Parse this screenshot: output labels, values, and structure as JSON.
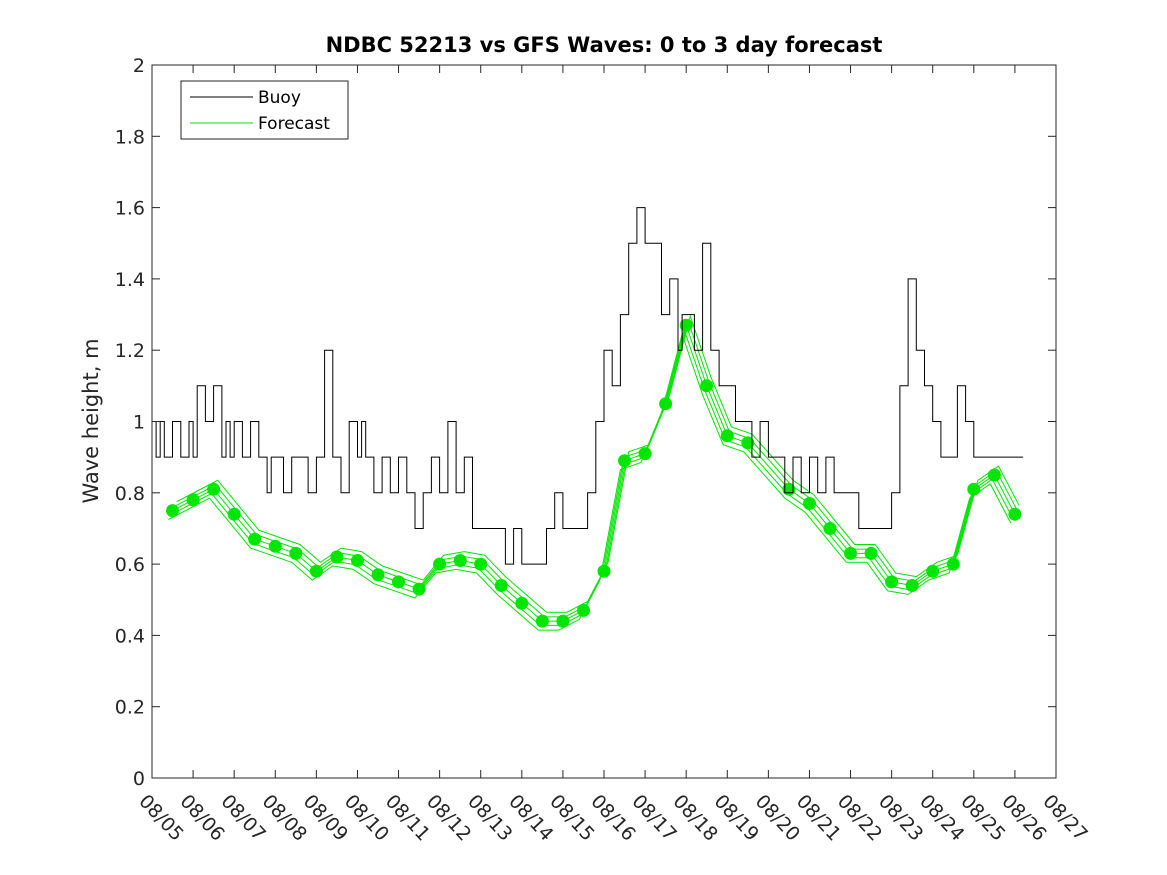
{
  "chart_data": {
    "type": "line",
    "title": "NDBC 52213 vs GFS Waves: 0 to 3 day forecast",
    "xlabel": "",
    "ylabel": "Wave height, m",
    "xlim": [
      0,
      22
    ],
    "ylim": [
      0,
      2
    ],
    "x_tick_labels": [
      "08/05",
      "08/06",
      "08/07",
      "08/08",
      "08/09",
      "08/10",
      "08/11",
      "08/12",
      "08/13",
      "08/14",
      "08/15",
      "08/16",
      "08/17",
      "08/18",
      "08/19",
      "08/20",
      "08/21",
      "08/22",
      "08/23",
      "08/24",
      "08/25",
      "08/26",
      "08/27"
    ],
    "y_ticks": [
      0,
      0.2,
      0.4,
      0.6,
      0.8,
      1,
      1.2,
      1.4,
      1.6,
      1.8,
      2
    ],
    "y_tick_labels": [
      "0",
      "0.2",
      "0.4",
      "0.6",
      "0.8",
      "1",
      "1.2",
      "1.4",
      "1.6",
      "1.8",
      "2"
    ],
    "legend": {
      "position": "top-left",
      "entries": [
        {
          "name": "Buoy",
          "color": "#000000"
        },
        {
          "name": "Forecast",
          "color": "#00e600"
        }
      ]
    },
    "colors": {
      "buoy": "#000000",
      "forecast": "#00e600",
      "axes": "#262626"
    },
    "series": [
      {
        "name": "Buoy",
        "x": [
          0,
          0.1,
          0.2,
          0.3,
          0.5,
          0.7,
          0.9,
          1.0,
          1.1,
          1.3,
          1.5,
          1.7,
          1.8,
          1.9,
          2.0,
          2.2,
          2.4,
          2.6,
          2.8,
          2.9,
          3.0,
          3.2,
          3.4,
          3.6,
          3.8,
          4.0,
          4.2,
          4.4,
          4.6,
          4.8,
          5.0,
          5.1,
          5.2,
          5.4,
          5.6,
          5.8,
          6.0,
          6.2,
          6.4,
          6.6,
          6.8,
          7.0,
          7.2,
          7.4,
          7.6,
          7.8,
          8.0,
          8.2,
          8.4,
          8.6,
          8.8,
          9.0,
          9.2,
          9.4,
          9.6,
          9.8,
          10.0,
          10.2,
          10.4,
          10.6,
          10.8,
          11.0,
          11.2,
          11.4,
          11.6,
          11.8,
          12.0,
          12.2,
          12.4,
          12.6,
          12.8,
          12.9,
          13.0,
          13.2,
          13.4,
          13.6,
          13.8,
          14.0,
          14.2,
          14.4,
          14.6,
          14.8,
          15.0,
          15.2,
          15.4,
          15.6,
          15.8,
          16.0,
          16.2,
          16.4,
          16.6,
          16.8,
          17.0,
          17.2,
          17.4,
          17.6,
          17.8,
          18.0,
          18.2,
          18.4,
          18.6,
          18.8,
          19.0,
          19.2,
          19.4,
          19.6,
          19.8,
          20.0,
          20.1,
          20.2,
          20.4,
          20.6,
          20.8,
          21.0,
          21.1,
          21.2
        ],
        "values": [
          1.0,
          0.9,
          1.0,
          0.9,
          1.0,
          0.9,
          1.0,
          0.9,
          1.1,
          1.0,
          1.1,
          0.9,
          1.0,
          0.9,
          1.0,
          0.9,
          1.0,
          0.9,
          0.8,
          0.9,
          0.9,
          0.8,
          0.9,
          0.9,
          0.8,
          0.9,
          1.2,
          0.9,
          0.8,
          1.0,
          0.9,
          1.0,
          0.9,
          0.8,
          0.9,
          0.8,
          0.9,
          0.8,
          0.7,
          0.8,
          0.9,
          0.8,
          1.0,
          0.8,
          0.9,
          0.7,
          0.7,
          0.7,
          0.7,
          0.6,
          0.7,
          0.6,
          0.6,
          0.6,
          0.7,
          0.8,
          0.7,
          0.7,
          0.7,
          0.8,
          1.0,
          1.2,
          1.1,
          1.3,
          1.5,
          1.6,
          1.5,
          1.5,
          1.3,
          1.4,
          1.2,
          1.3,
          1.3,
          1.2,
          1.5,
          1.2,
          1.1,
          1.1,
          1.0,
          1.0,
          0.9,
          1.0,
          0.9,
          0.9,
          0.8,
          0.9,
          0.8,
          0.9,
          0.8,
          0.9,
          0.8,
          0.8,
          0.8,
          0.7,
          0.7,
          0.7,
          0.7,
          0.8,
          1.1,
          1.4,
          1.2,
          1.1,
          1.0,
          0.9,
          0.9,
          1.1,
          1.0,
          0.9,
          0.9,
          0.9,
          0.9,
          0.9,
          0.9,
          0.9,
          0.9,
          0.9
        ]
      },
      {
        "name": "Forecast",
        "x": [
          0.5,
          1.0,
          1.5,
          2.0,
          2.5,
          3.0,
          3.5,
          4.0,
          4.5,
          5.0,
          5.5,
          6.0,
          6.5,
          7.0,
          7.5,
          8.0,
          8.5,
          9.0,
          9.5,
          10.0,
          10.5,
          11.0,
          11.5,
          12.0,
          12.5,
          13.0,
          13.5,
          14.0,
          14.5,
          15.0,
          15.5,
          16.0,
          16.5,
          17.0,
          17.5,
          18.0,
          18.5,
          19.0,
          19.5,
          20.0,
          20.5,
          21.0
        ],
        "values": [
          0.75,
          0.78,
          0.81,
          0.74,
          0.67,
          0.65,
          0.63,
          0.58,
          0.62,
          0.61,
          0.57,
          0.55,
          0.53,
          0.6,
          0.61,
          0.6,
          0.54,
          0.49,
          0.44,
          0.44,
          0.47,
          0.58,
          0.89,
          0.91,
          1.05,
          1.27,
          1.1,
          0.96,
          0.94,
          null,
          0.81,
          0.77,
          0.7,
          0.63,
          0.63,
          0.55,
          0.54,
          0.58,
          0.6,
          0.81,
          0.85,
          0.74
        ]
      }
    ]
  }
}
